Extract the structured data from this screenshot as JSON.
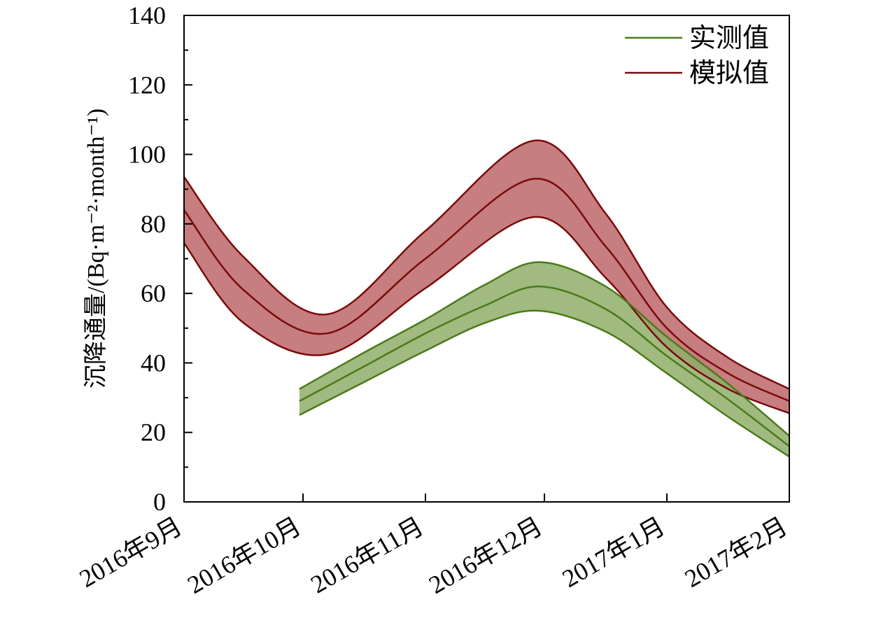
{
  "chart_data": {
    "type": "line",
    "title": "",
    "ylabel": "沉降通量/(Bq·m⁻²·month⁻¹)",
    "xlabel": "",
    "ylim": [
      0,
      140
    ],
    "yticks": [
      0,
      20,
      40,
      60,
      80,
      100,
      120,
      140
    ],
    "xlim": [
      0,
      5
    ],
    "categories": [
      "2016年9月",
      "2016年10月",
      "2016年11月",
      "2016年12月",
      "2017年1月",
      "2017年2月"
    ],
    "grid": false,
    "legend_position": "top-right",
    "series": [
      {
        "name": "实测值",
        "color": "#4a7a1a",
        "fill": "#8fae6a",
        "x": [
          0.97,
          1.5,
          2.0,
          2.5,
          2.96,
          3.5,
          4.0,
          4.5,
          5.0
        ],
        "y": [
          29,
          39,
          48.5,
          56.5,
          62,
          55.5,
          42,
          29.5,
          16
        ],
        "upper": [
          32.5,
          43,
          52.5,
          62.5,
          69,
          62,
          47.5,
          34,
          19
        ],
        "lower": [
          25,
          34.5,
          43.5,
          51.5,
          55,
          49,
          37,
          24.5,
          13
        ]
      },
      {
        "name": "模拟值",
        "color": "#7a0a0a",
        "fill": "#b85e60",
        "x": [
          0,
          0.5,
          1.2,
          2.0,
          2.92,
          3.5,
          4.0,
          4.5,
          5.0
        ],
        "y": [
          84,
          61,
          48.5,
          70,
          93,
          73.5,
          50,
          37,
          29
        ],
        "upper": [
          93.5,
          70.5,
          54,
          78,
          104,
          83,
          56,
          41.5,
          32.5
        ],
        "lower": [
          74.5,
          51.5,
          42.5,
          61.5,
          82,
          64.5,
          44.5,
          32.5,
          25.5
        ]
      }
    ]
  }
}
